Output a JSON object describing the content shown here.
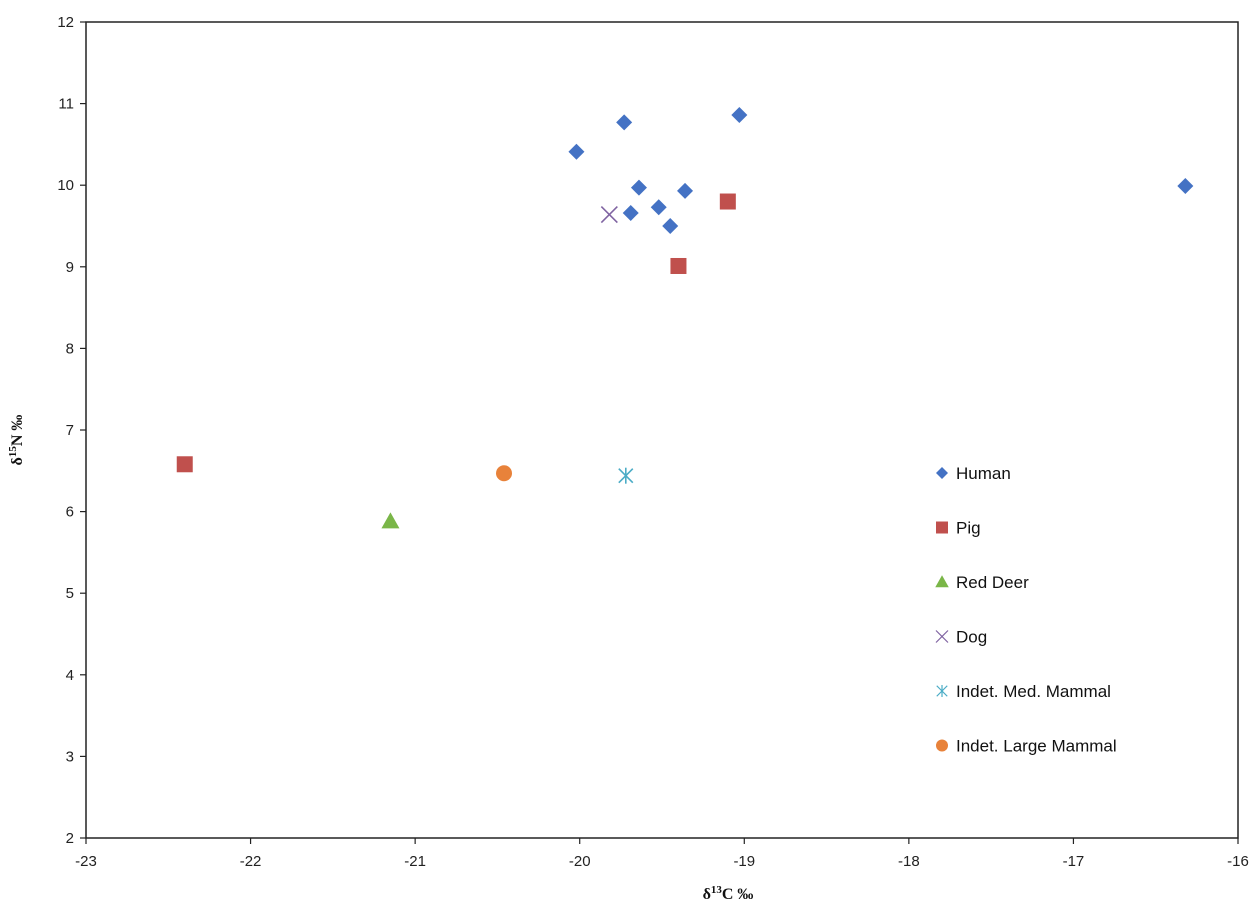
{
  "chart_data": {
    "type": "scatter",
    "title": "",
    "xlabel": "δ13C ‰",
    "ylabel": "δ15N ‰",
    "xlabel_parts": {
      "delta": "δ",
      "sup": "13",
      "rest": "C ‰"
    },
    "ylabel_parts": {
      "delta": "δ",
      "sup": "15",
      "rest": "N ‰"
    },
    "xlim": [
      -23,
      -16
    ],
    "ylim": [
      2,
      12
    ],
    "xticks": [
      -23,
      -22,
      -21,
      -20,
      -19,
      -18,
      -17,
      -16
    ],
    "yticks": [
      2,
      3,
      4,
      5,
      6,
      7,
      8,
      9,
      10,
      11,
      12
    ],
    "grid": false,
    "legend_position": "right",
    "series": [
      {
        "name": "Human",
        "marker": "diamond",
        "color": "#4472c4",
        "points": [
          [
            -20.02,
            10.41
          ],
          [
            -19.73,
            10.77
          ],
          [
            -19.03,
            10.86
          ],
          [
            -19.64,
            9.97
          ],
          [
            -19.36,
            9.93
          ],
          [
            -19.52,
            9.73
          ],
          [
            -19.69,
            9.66
          ],
          [
            -19.45,
            9.5
          ],
          [
            -16.32,
            9.99
          ]
        ]
      },
      {
        "name": "Pig",
        "marker": "square",
        "color": "#c0504d",
        "points": [
          [
            -22.4,
            6.58
          ],
          [
            -19.4,
            9.01
          ],
          [
            -19.1,
            9.8
          ]
        ]
      },
      {
        "name": "Red Deer",
        "marker": "triangle",
        "color": "#7ab648",
        "points": [
          [
            -21.15,
            5.88
          ]
        ]
      },
      {
        "name": "Dog",
        "marker": "x",
        "color": "#8064a2",
        "points": [
          [
            -19.82,
            9.64
          ]
        ]
      },
      {
        "name": "Indet. Med. Mammal",
        "marker": "star",
        "color": "#4bacc6",
        "points": [
          [
            -19.72,
            6.44
          ]
        ]
      },
      {
        "name": "Indet. Large Mammal",
        "marker": "circle",
        "color": "#e8823a",
        "points": [
          [
            -20.46,
            6.47
          ]
        ]
      }
    ]
  }
}
